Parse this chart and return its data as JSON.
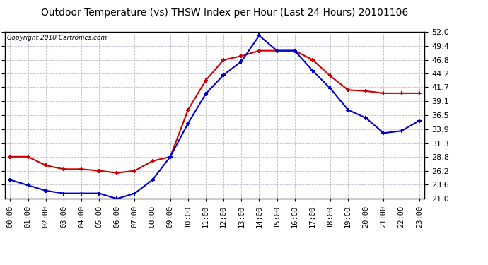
{
  "title": "Outdoor Temperature (vs) THSW Index per Hour (Last 24 Hours) 20101106",
  "copyright": "Copyright 2010 Cartronics.com",
  "hours": [
    "00:00",
    "01:00",
    "02:00",
    "03:00",
    "04:00",
    "05:00",
    "06:00",
    "07:00",
    "08:00",
    "09:00",
    "10:00",
    "11:00",
    "12:00",
    "13:00",
    "14:00",
    "15:00",
    "16:00",
    "17:00",
    "18:00",
    "19:00",
    "20:00",
    "21:00",
    "22:00",
    "23:00"
  ],
  "temp": [
    24.5,
    23.5,
    22.5,
    22.0,
    22.0,
    22.0,
    21.0,
    22.0,
    24.5,
    28.8,
    35.0,
    40.5,
    44.0,
    46.5,
    51.3,
    48.5,
    48.5,
    44.8,
    41.5,
    37.5,
    36.0,
    33.2,
    33.6,
    35.5
  ],
  "thsw": [
    28.8,
    28.8,
    27.2,
    26.5,
    26.5,
    26.2,
    25.8,
    26.2,
    28.0,
    28.8,
    37.5,
    43.0,
    46.8,
    47.5,
    48.5,
    48.5,
    48.5,
    46.8,
    43.8,
    41.2,
    41.0,
    40.6,
    40.6,
    40.6
  ],
  "ylim": [
    21.0,
    52.0
  ],
  "yticks": [
    21.0,
    23.6,
    26.2,
    28.8,
    31.3,
    33.9,
    36.5,
    39.1,
    41.7,
    44.2,
    46.8,
    49.4,
    52.0
  ],
  "temp_color": "#0000cc",
  "thsw_color": "#cc0000",
  "grid_color": "#bbbbcc",
  "bg_color": "#ffffff",
  "title_fontsize": 10,
  "copyright_fontsize": 6.5,
  "tick_fontsize": 7.5,
  "ytick_fontsize": 8
}
